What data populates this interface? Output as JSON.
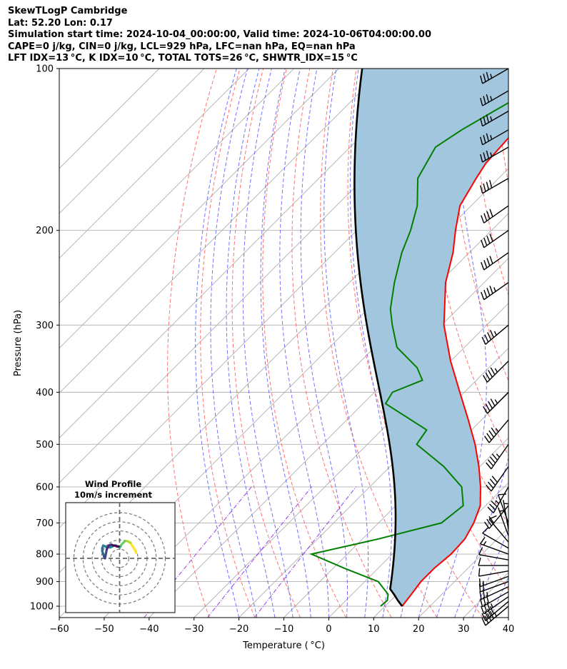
{
  "header": {
    "line1": "SkewTLogP Cambridge",
    "line2": "Lat: 52.20   Lon: 0.17",
    "line3": "Simulation start time: 2024-10-04_00:00:00, Valid time: 2024-10-06T04:00:00.00",
    "line4": "CAPE=0 j/kg, CIN=0 j/kg, LCL=929 hPa, LFC=nan hPa, EQ=nan hPa",
    "line5": "LFT IDX=13 °C, K IDX=10 °C, TOTAL TOTS=26 °C, SHWTR_IDX=15 °C"
  },
  "colors": {
    "temperature": "#ff0000",
    "dewpoint": "#008000",
    "parcel": "#000000",
    "cape_fill": "#a3c6df",
    "dry_adiabat": "#ff5a5a",
    "moist_adiabat": "#5050ff",
    "mixing_ratio": "#8a2be2",
    "isotherm": "#b0b0b0"
  },
  "chart_data": [
    {
      "type": "line",
      "title": "SkewTLogP Cambridge",
      "xlabel": "Temperature ( °C)",
      "ylabel": "Pressure (hPa)",
      "xlim": [
        -60,
        40
      ],
      "ylim": [
        1050,
        100
      ],
      "yscale": "log",
      "grid": true,
      "xticks": [
        -60,
        -50,
        -40,
        -30,
        -20,
        -10,
        0,
        10,
        20,
        30,
        40
      ],
      "xtick_labels": [
        "−60",
        "−50",
        "−40",
        "−30",
        "−20",
        "−10",
        "0",
        "10",
        "20",
        "30",
        "40"
      ],
      "yticks": [
        1000,
        900,
        800,
        700,
        600,
        500,
        400,
        300,
        200,
        100
      ],
      "ytick_labels": [
        "1000",
        "900",
        "800",
        "700",
        "600",
        "500",
        "400",
        "300",
        "200",
        "100"
      ],
      "series": [
        {
          "name": "Temperature",
          "p": [
            1000,
            950,
            900,
            850,
            800,
            750,
            700,
            650,
            600,
            550,
            500,
            450,
            400,
            350,
            300,
            250,
            220,
            200,
            180,
            160,
            150,
            130,
            120,
            110,
            100
          ],
          "t": [
            13.8,
            13.2,
            12.5,
            12.5,
            13.1,
            12.8,
            11.2,
            8.8,
            4.7,
            -0.2,
            -6.0,
            -13.0,
            -21.0,
            -30.0,
            -39.5,
            -48.6,
            -53.6,
            -58.0,
            -62.5,
            -65.0,
            -66.2,
            -67.0,
            -70.5,
            -74.5,
            -78.0
          ]
        },
        {
          "name": "Dewpoint",
          "p": [
            1000,
            975,
            950,
            900,
            850,
            800,
            750,
            700,
            650,
            600,
            550,
            500,
            470,
            420,
            400,
            380,
            360,
            330,
            300,
            280,
            250,
            220,
            200,
            180,
            160,
            140,
            130,
            120,
            100
          ],
          "t": [
            9.0,
            9.2,
            8.0,
            3.0,
            -7.5,
            -18.0,
            -6.5,
            4.0,
            5.0,
            0.5,
            -8.0,
            -19.0,
            -20.0,
            -35.0,
            -36.0,
            -32.0,
            -36.0,
            -45.0,
            -51.0,
            -55.0,
            -60.0,
            -65.0,
            -68.0,
            -72.0,
            -78.0,
            -81.0,
            -79.0,
            -76.0,
            -69.0
          ]
        },
        {
          "name": "Parcel profile",
          "p": [
            1000,
            975,
            950,
            929
          ],
          "t": [
            13.8,
            11.5,
            9.3,
            7.3
          ],
          "moist_from_p": 929,
          "moist_from_t": 7.3
        }
      ],
      "wind_barbs": {
        "p": [
          1000,
          980,
          960,
          940,
          920,
          900,
          880,
          860,
          840,
          820,
          800,
          780,
          760,
          740,
          720,
          700,
          650,
          600,
          550,
          500,
          450,
          400,
          350,
          300,
          250,
          220,
          200,
          180,
          160,
          140,
          130,
          120,
          110,
          100
        ],
        "speed_kt": [
          45,
          40,
          35,
          30,
          25,
          20,
          15,
          10,
          10,
          10,
          15,
          10,
          10,
          5,
          5,
          10,
          30,
          35,
          40,
          45,
          45,
          45,
          45,
          45,
          45,
          40,
          40,
          40,
          40,
          35,
          35,
          35,
          35,
          35
        ],
        "dir_deg": [
          230,
          230,
          235,
          240,
          245,
          250,
          250,
          260,
          270,
          280,
          290,
          300,
          320,
          340,
          350,
          340,
          220,
          210,
          215,
          215,
          220,
          225,
          225,
          230,
          235,
          235,
          235,
          235,
          240,
          240,
          240,
          240,
          240,
          240
        ]
      },
      "inset": {
        "type": "scatter",
        "title": "Wind Profile",
        "subtitle": "10m/s increment",
        "rings_ms": [
          10,
          20,
          30,
          40,
          50
        ],
        "trace": {
          "u": [
            18,
            17,
            15,
            13,
            12,
            10,
            8,
            6,
            4,
            2,
            1,
            0,
            -2,
            -4,
            -6,
            -8,
            -10,
            -13,
            -16,
            -18,
            -19,
            -19,
            -18,
            -17,
            -16,
            -15,
            -14,
            -12,
            -9,
            -7,
            -5,
            -3,
            -1
          ],
          "v": [
            6,
            9,
            12,
            15,
            17,
            18,
            19,
            19,
            17,
            15,
            13,
            12,
            13,
            14,
            14,
            13,
            12,
            12,
            13,
            14,
            11,
            8,
            5,
            2,
            0,
            5,
            10,
            14,
            15,
            14,
            14,
            13,
            13
          ]
        }
      }
    }
  ]
}
